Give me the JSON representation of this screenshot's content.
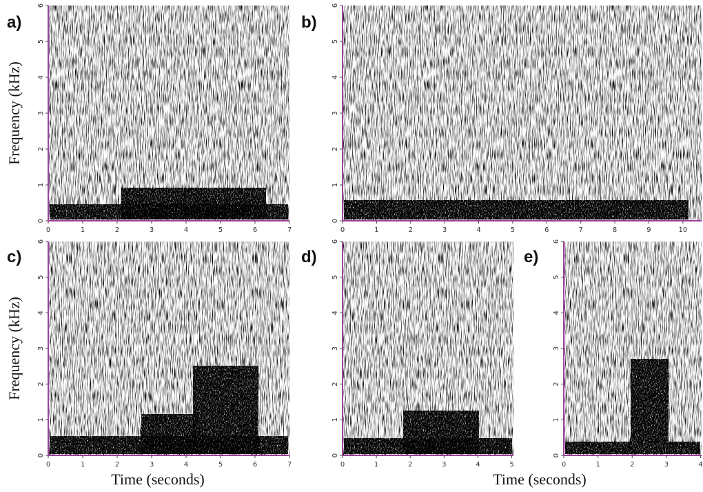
{
  "chart_data": [
    {
      "type": "spectrogram",
      "label": "a)",
      "ylabel": "Frequency (kHz)",
      "xlim": [
        0,
        7
      ],
      "xticks": [
        0,
        1,
        2,
        3,
        4,
        5,
        6,
        7
      ],
      "ylim": [
        0,
        6
      ],
      "yticks": [
        0,
        1,
        2,
        3,
        4,
        5,
        6
      ]
    },
    {
      "type": "spectrogram",
      "label": "b)",
      "xlim": [
        0,
        10.55
      ],
      "xticks": [
        0,
        1,
        2,
        3,
        4,
        5,
        6,
        7,
        8,
        9,
        10
      ],
      "ylim": [
        0,
        6
      ],
      "yticks": [
        0,
        1,
        2,
        3,
        4,
        5,
        6
      ]
    },
    {
      "type": "spectrogram",
      "label": "c)",
      "ylabel": "Frequency (kHz)",
      "xlabel": "Time (seconds)",
      "xlim": [
        0,
        7
      ],
      "xticks": [
        0,
        1,
        2,
        3,
        4,
        5,
        6,
        7
      ],
      "ylim": [
        0,
        6
      ],
      "yticks": [
        0,
        1,
        2,
        3,
        4,
        5,
        6
      ]
    },
    {
      "type": "spectrogram",
      "label": "d)",
      "xlim": [
        0,
        5.05
      ],
      "xticks": [
        0,
        1,
        2,
        3,
        4,
        5
      ],
      "ylim": [
        0,
        6
      ],
      "yticks": [
        0,
        1,
        2,
        3,
        4,
        5,
        6
      ]
    },
    {
      "type": "spectrogram",
      "label": "e)",
      "xlabel": "Time (seconds)",
      "xlim": [
        0,
        4.03
      ],
      "xticks": [
        0,
        1,
        2,
        3,
        4
      ],
      "ylim": [
        0,
        6
      ],
      "yticks": [
        0,
        1,
        2,
        3,
        4,
        5,
        6
      ]
    }
  ]
}
